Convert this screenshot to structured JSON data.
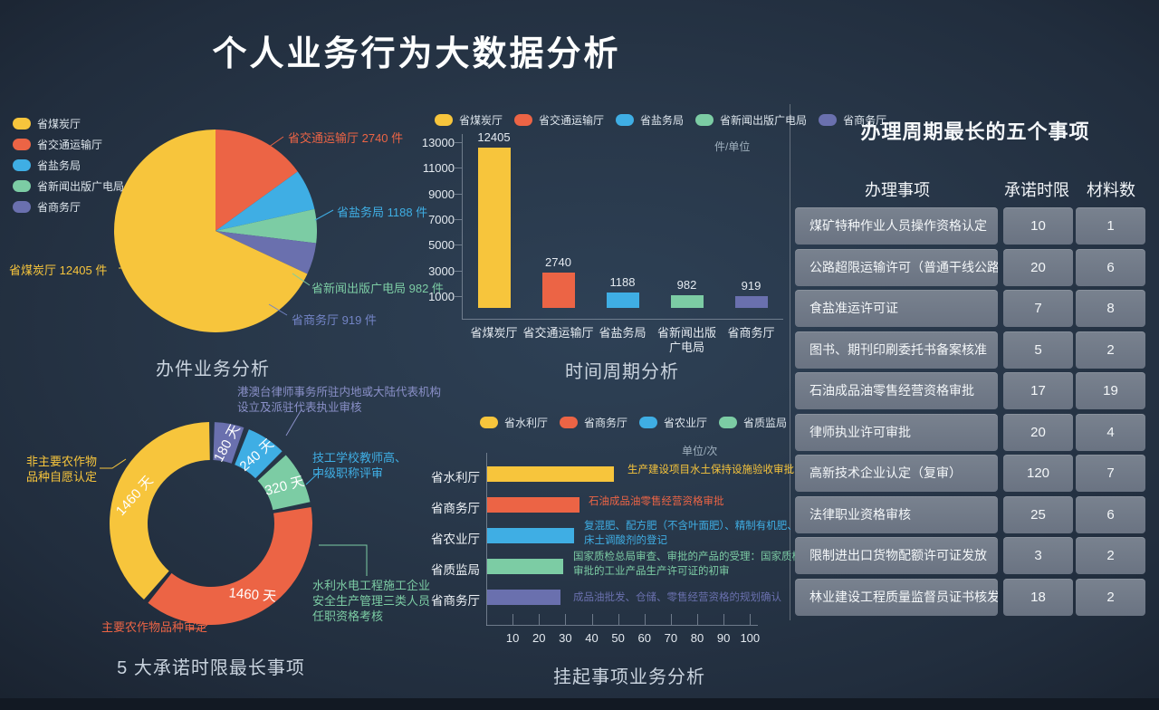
{
  "page": {
    "title": "个人业务行为大数据分析"
  },
  "palette": {
    "yellow": "#F7C53C",
    "red": "#EC6445",
    "blue": "#3FAEE4",
    "green": "#7CCCA4",
    "purple": "#6A70AE",
    "lavender": "#8A90C8",
    "periwinkle": "#7384C6",
    "axis": "#8793A1"
  },
  "chart_data": [
    {
      "id": "pie-business",
      "type": "pie",
      "title": "办件业务分析",
      "legend_position": "top-left",
      "categories": [
        "省煤炭厅",
        "省交通运输厅",
        "省盐务局",
        "省新闻出版广电局",
        "省商务厅"
      ],
      "values": [
        12405,
        2740,
        1188,
        982,
        919
      ],
      "unit": "件",
      "series_colors": [
        "yellow",
        "red",
        "blue",
        "green",
        "purple"
      ],
      "legend": [
        {
          "label": "省煤炭厅",
          "color": "yellow"
        },
        {
          "label": "省交通运输厅",
          "color": "red"
        },
        {
          "label": "省盐务局",
          "color": "blue"
        },
        {
          "label": "省新闻出版广电局",
          "color": "green"
        },
        {
          "label": "省商务厅",
          "color": "purple"
        }
      ],
      "callouts": [
        {
          "text": "省煤炭厅 12405 件",
          "color": "yellow"
        },
        {
          "text": "省交通运输厅 2740 件",
          "color": "red"
        },
        {
          "text": "省盐务局 1188 件",
          "color": "blue"
        },
        {
          "text": "省新闻出版广电局 982 件",
          "color": "green"
        },
        {
          "text": "省商务厅 919 件",
          "color": "periwinkle"
        }
      ]
    },
    {
      "id": "bar-time-cycle",
      "type": "bar",
      "title": "时间周期分析",
      "unit_label": "件/单位",
      "categories": [
        "省煤炭厅",
        "省交通运输厅",
        "省盐务局",
        "省新闻出版广电局",
        "省商务厅"
      ],
      "x_labels": [
        "省煤炭厅",
        "省交通运输厅",
        "省盐务局",
        "省新闻出版\n广电局",
        "省商务厅"
      ],
      "values": [
        12405,
        2740,
        1188,
        982,
        919
      ],
      "series_colors": [
        "yellow",
        "red",
        "blue",
        "green",
        "purple"
      ],
      "ylim": [
        0,
        13000
      ],
      "yticks": [
        13000,
        11000,
        9000,
        7000,
        5000,
        3000,
        1000
      ],
      "legend": [
        {
          "label": "省煤炭厅",
          "color": "yellow"
        },
        {
          "label": "省交通运输厅",
          "color": "red"
        },
        {
          "label": "省盐务局",
          "color": "blue"
        },
        {
          "label": "省新闻出版广电局",
          "color": "green"
        },
        {
          "label": "省商务厅",
          "color": "purple"
        }
      ]
    },
    {
      "id": "donut-longest-commitments",
      "type": "pie",
      "variant": "donut",
      "title": "5 大承诺时限最长事项",
      "segments": [
        {
          "name": "港澳台律师事务所驻内地或大陆代表机构设立及派驻代表执业审核",
          "value": 180,
          "value_label": "180 天",
          "color": "purple",
          "annotation": "港澳台律师事务所驻内地或大陆代表机构\n设立及派驻代表执业审核",
          "annotation_color": "lavender"
        },
        {
          "name": "技工学校教师高、中级职称评审",
          "value": 240,
          "value_label": "240 天",
          "color": "blue",
          "annotation": "技工学校教师高、\n中级职称评审",
          "annotation_color": "blue"
        },
        {
          "name": "水利水电工程施工企业安全生产管理三类人员任职资格考核",
          "value": 320,
          "value_label": "320 天",
          "color": "green",
          "annotation": "水利水电工程施工企业\n安全生产管理三类人员\n任职资格考核",
          "annotation_color": "green"
        },
        {
          "name": "主要农作物品种审定",
          "value": 1460,
          "value_label": "1460 天",
          "color": "red",
          "annotation": "主要农作物品种审定",
          "annotation_color": "red"
        },
        {
          "name": "非主要农作物品种自愿认定",
          "value": 1460,
          "value_label": "1460 天",
          "color": "yellow",
          "annotation": "非主要农作物\n品种自愿认定",
          "annotation_color": "yellow"
        }
      ]
    },
    {
      "id": "hbar-suspended-items",
      "type": "bar",
      "orientation": "horizontal",
      "title": "挂起事项业务分析",
      "unit_label": "单位/次",
      "categories": [
        "省水利厅",
        "省商务厅",
        "省农业厅",
        "省质监局",
        "省商务厅"
      ],
      "values": [
        48,
        35,
        33,
        29,
        28
      ],
      "series_colors": [
        "yellow",
        "red",
        "blue",
        "green",
        "purple"
      ],
      "xlim": [
        0,
        100
      ],
      "xticks": [
        10,
        20,
        30,
        40,
        50,
        60,
        70,
        80,
        90,
        100
      ],
      "legend": [
        {
          "label": "省水利厅",
          "color": "yellow"
        },
        {
          "label": "省商务厅",
          "color": "red"
        },
        {
          "label": "省农业厅",
          "color": "blue"
        },
        {
          "label": "省质监局",
          "color": "green"
        },
        {
          "label": "省商务厅",
          "color": "purple"
        }
      ],
      "annotations": [
        {
          "text": "生产建设项目水土保持设施验收审批",
          "color": "yellow"
        },
        {
          "text": "石油成品油零售经营资格审批",
          "color": "red"
        },
        {
          "text": "复混肥、配方肥（不含叶面肥）、精制有机肥、\n床土调酸剂的登记",
          "color": "blue"
        },
        {
          "text": "国家质检总局审查、审批的产品的受理：国家质检总局\n审批的工业产品生产许可证的初审",
          "color": "green"
        },
        {
          "text": "成品油批发、仓储、零售经营资格的规划确认",
          "color": "purple"
        }
      ]
    },
    {
      "id": "table-longest-cycle",
      "type": "table",
      "title": "办理周期最长的五个事项",
      "columns": [
        "办理事项",
        "承诺时限",
        "材料数"
      ],
      "rows": [
        [
          "煤矿特种作业人员操作资格认定",
          "10",
          "1"
        ],
        [
          "公路超限运输许可（普通干线公路）",
          "20",
          "6"
        ],
        [
          "食盐准运许可证",
          "7",
          "8"
        ],
        [
          "图书、期刊印刷委托书备案核准",
          "5",
          "2"
        ],
        [
          "石油成品油零售经营资格审批",
          "17",
          "19"
        ],
        [
          "律师执业许可审批",
          "20",
          "4"
        ],
        [
          "高新技术企业认定（复审）",
          "120",
          "7"
        ],
        [
          "法律职业资格审核",
          "25",
          "6"
        ],
        [
          "限制进出口货物配额许可证发放",
          "3",
          "2"
        ],
        [
          "林业建设工程质量监督员证书核发",
          "18",
          "2"
        ]
      ]
    }
  ]
}
